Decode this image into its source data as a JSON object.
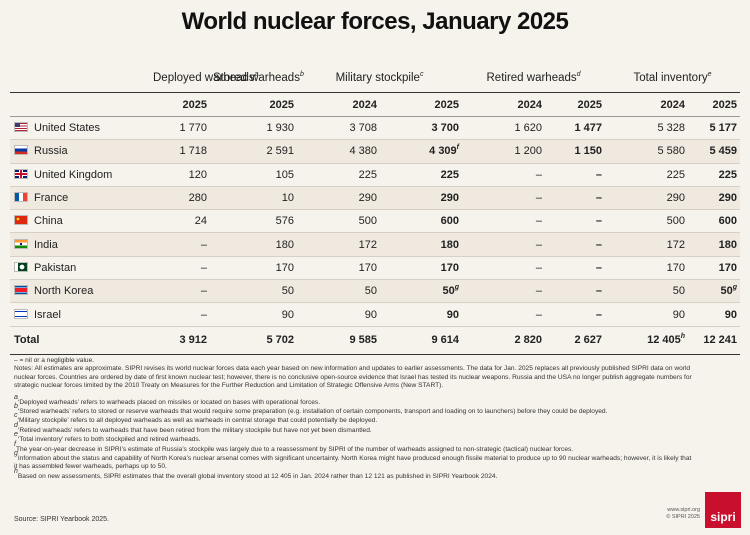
{
  "title": "World nuclear forces, January 2025",
  "table": {
    "groups": [
      {
        "label": "Deployed warheads",
        "note": "a"
      },
      {
        "label": "Stored warheads",
        "note": "b"
      },
      {
        "label": "Military stockpile",
        "note": "c"
      },
      {
        "label": "Retired warheads",
        "note": "d"
      },
      {
        "label": "Total inventory",
        "note": "e"
      }
    ],
    "years": [
      "2025",
      "2025",
      "2024",
      "2025",
      "2024",
      "2025",
      "2024",
      "2025"
    ],
    "rows": [
      {
        "country": "United States",
        "cells": [
          "1 770",
          "1 930",
          "3 708",
          "3 700",
          "1 620",
          "1 477",
          "5 328",
          "5 177"
        ]
      },
      {
        "country": "Russia",
        "cells": [
          "1 718",
          "2 591",
          "4 380",
          {
            "text": "4 309",
            "note": "f"
          },
          "1 200",
          "1 150",
          "5 580",
          "5 459"
        ]
      },
      {
        "country": "United Kingdom",
        "cells": [
          "120",
          "105",
          "225",
          "225",
          "–",
          "–",
          "225",
          "225"
        ]
      },
      {
        "country": "France",
        "cells": [
          "280",
          "10",
          "290",
          "290",
          "–",
          "–",
          "290",
          "290"
        ]
      },
      {
        "country": "China",
        "cells": [
          "24",
          "576",
          "500",
          "600",
          "–",
          "–",
          "500",
          "600"
        ]
      },
      {
        "country": "India",
        "cells": [
          "–",
          "180",
          "172",
          "180",
          "–",
          "–",
          "172",
          "180"
        ]
      },
      {
        "country": "Pakistan",
        "cells": [
          "–",
          "170",
          "170",
          "170",
          "–",
          "–",
          "170",
          "170"
        ]
      },
      {
        "country": "North Korea",
        "cells": [
          "–",
          "50",
          "50",
          {
            "text": "50",
            "note": "g"
          },
          "–",
          "–",
          "50",
          {
            "text": "50",
            "note": "g"
          }
        ]
      },
      {
        "country": "Israel",
        "cells": [
          "–",
          "90",
          "90",
          "90",
          "–",
          "–",
          "90",
          "90"
        ]
      }
    ],
    "total": {
      "label": "Total",
      "cells": [
        "3 912",
        "5 702",
        "9 585",
        "9 614",
        "2 820",
        "2 627",
        {
          "text": "12 405",
          "note": "h"
        },
        "12 241"
      ]
    }
  },
  "notes": [
    "– = nil or a negligible value.",
    "Notes: All estimates are approximate. SIPRI revises its world nuclear forces data each year based on new information and updates to earlier assessments. The data for Jan. 2025 replaces all previously published SIPRI data on world nuclear forces. Countries are ordered by date of first known nuclear test; however, there is no conclusive open-source evidence that Israel has tested its nuclear weapons. Russia and the USA no longer publish aggregate numbers for strategic nuclear forces limited by the 2010 Treaty on Measures for the Further Reduction and Limitation of Strategic Offensive Arms (New START)."
  ],
  "footnotes": [
    {
      "mark": "a",
      "text": "‘Deployed warheads’ refers to warheads placed on missiles or located on bases with operational forces."
    },
    {
      "mark": "b",
      "text": "‘Stored warheads’ refers to stored or reserve warheads that would require some preparation (e.g. installation of certain components, transport and loading on to launchers) before they could be deployed."
    },
    {
      "mark": "c",
      "text": "‘Military stockpile’ refers to all deployed warheads as well as warheads in central storage that could potentially be deployed."
    },
    {
      "mark": "d",
      "text": "‘Retired warheads’ refers to warheads that have been retired from the military stockpile but have not yet been dismantled."
    },
    {
      "mark": "e",
      "text": "‘Total inventory’ refers to both stockpiled and retired warheads."
    },
    {
      "mark": "f",
      "text": "The year-on-year decrease in SIPRI’s estimate of Russia’s stockpile was largely due to a reassessment by SIPRI of the number of warheads assigned to non-strategic (tactical) nuclear forces."
    },
    {
      "mark": "g",
      "text": "Information about the status and capability of North Korea’s nuclear arsenal comes with significant uncertainty. North Korea might have produced enough fissile material to produce up to 90 nuclear warheads; however, it is likely that it has assembled fewer warheads, perhaps up to 50."
    },
    {
      "mark": "h",
      "text": "Based on new assessments, SIPRI estimates that the overall global inventory stood at 12 405 in Jan. 2024 rather than 12 121 as published in SIPRI Yearbook 2024."
    }
  ],
  "source": "Source: SIPRI Yearbook 2025.",
  "footer": {
    "website": "www.sipri.org",
    "copyright": "© SIPRI 2025",
    "logo": "sipri"
  }
}
